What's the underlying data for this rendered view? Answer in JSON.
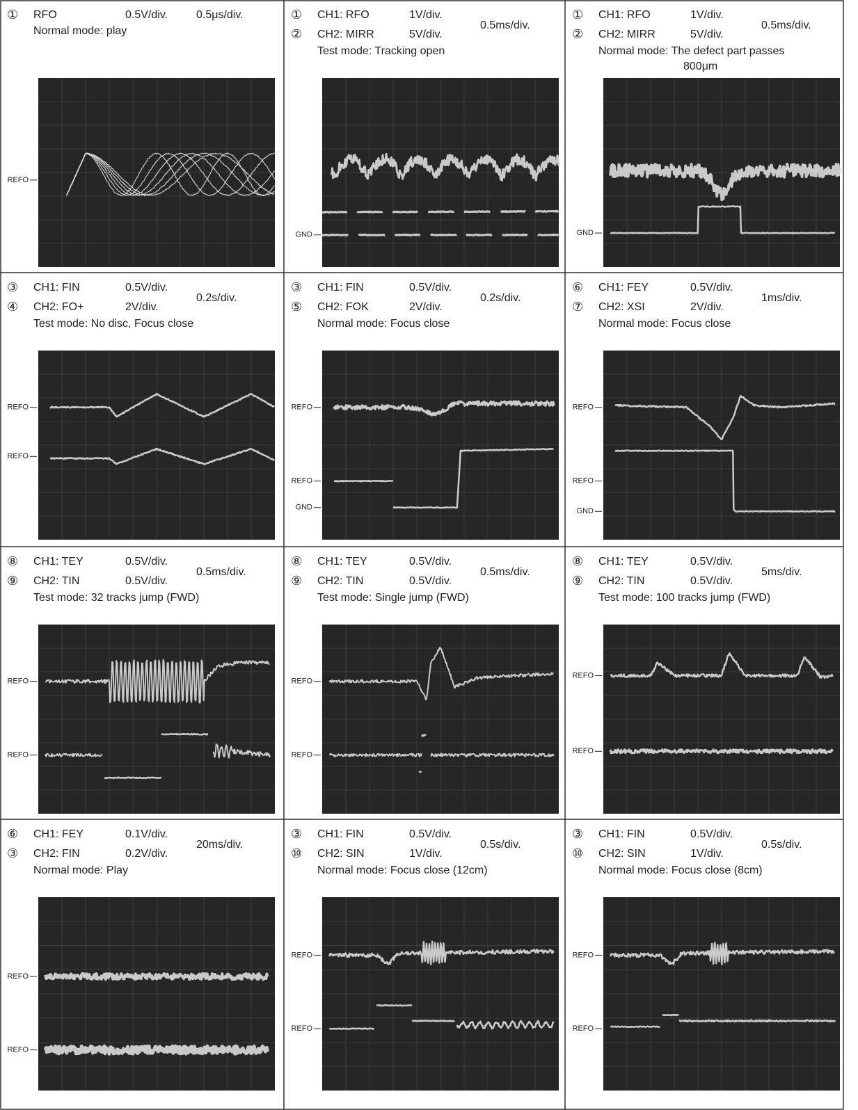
{
  "panels": [
    {
      "channels": [
        {
          "marker": "①",
          "name": "RFO",
          "volts": "0.5V/div."
        }
      ],
      "timebase": "0.5μs/div.",
      "mode": [
        "Normal mode: play"
      ],
      "refs": [
        "REFO"
      ]
    },
    {
      "channels": [
        {
          "marker": "①",
          "name": "CH1: RFO",
          "volts": "1V/div."
        },
        {
          "marker": "②",
          "name": "CH2: MIRR",
          "volts": "5V/div."
        }
      ],
      "timebase": "0.5ms/div.",
      "mode": [
        "Test mode: Tracking open"
      ],
      "refs": [
        "GND"
      ]
    },
    {
      "channels": [
        {
          "marker": "①",
          "name": "CH1: RFO",
          "volts": "1V/div."
        },
        {
          "marker": "②",
          "name": "CH2: MIRR",
          "volts": "5V/div."
        }
      ],
      "timebase": "0.5ms/div.",
      "mode": [
        "Normal mode: The defect part passes",
        "800μm"
      ],
      "refs": [
        "GND"
      ]
    },
    {
      "channels": [
        {
          "marker": "③",
          "name": "CH1: FIN",
          "volts": "0.5V/div."
        },
        {
          "marker": "④",
          "name": "CH2: FO+",
          "volts": "2V/div."
        }
      ],
      "timebase": "0.2s/div.",
      "mode": [
        "Test mode: No disc, Focus close"
      ],
      "refs": [
        "REFO",
        "REFO"
      ]
    },
    {
      "channels": [
        {
          "marker": "③",
          "name": "CH1: FIN",
          "volts": "0.5V/div."
        },
        {
          "marker": "⑤",
          "name": "CH2: FOK",
          "volts": "2V/div."
        }
      ],
      "timebase": "0.2s/div.",
      "mode": [
        "Normal mode: Focus close"
      ],
      "refs": [
        "REFO",
        "REFO",
        "GND"
      ]
    },
    {
      "channels": [
        {
          "marker": "⑥",
          "name": "CH1: FEY",
          "volts": "0.5V/div."
        },
        {
          "marker": "⑦",
          "name": "CH2: XSI",
          "volts": "2V/div."
        }
      ],
      "timebase": "1ms/div.",
      "mode": [
        "Normal mode: Focus close"
      ],
      "refs": [
        "REFO",
        "REFO",
        "GND"
      ]
    },
    {
      "channels": [
        {
          "marker": "⑧",
          "name": "CH1: TEY",
          "volts": "0.5V/div."
        },
        {
          "marker": "⑨",
          "name": "CH2: TIN",
          "volts": "0.5V/div."
        }
      ],
      "timebase": "0.5ms/div.",
      "mode": [
        "Test mode: 32 tracks jump (FWD)"
      ],
      "refs": [
        "REFO",
        "REFO"
      ]
    },
    {
      "channels": [
        {
          "marker": "⑧",
          "name": "CH1: TEY",
          "volts": "0.5V/div."
        },
        {
          "marker": "⑨",
          "name": "CH2: TIN",
          "volts": "0.5V/div."
        }
      ],
      "timebase": "0.5ms/div.",
      "mode": [
        "Test mode: Single jump (FWD)"
      ],
      "refs": [
        "REFO",
        "REFO"
      ]
    },
    {
      "channels": [
        {
          "marker": "⑧",
          "name": "CH1: TEY",
          "volts": "0.5V/div."
        },
        {
          "marker": "⑨",
          "name": "CH2: TIN",
          "volts": "0.5V/div."
        }
      ],
      "timebase": "5ms/div.",
      "mode": [
        "Test mode: 100 tracks jump (FWD)"
      ],
      "refs": [
        "REFO",
        "REFO"
      ]
    },
    {
      "channels": [
        {
          "marker": "⑥",
          "name": "CH1: FEY",
          "volts": "0.1V/div."
        },
        {
          "marker": "③",
          "name": "CH2: FIN",
          "volts": "0.2V/div."
        }
      ],
      "timebase": "20ms/div.",
      "mode": [
        "Normal mode: Play"
      ],
      "refs": [
        "REFO",
        "REFO"
      ]
    },
    {
      "channels": [
        {
          "marker": "③",
          "name": "CH1: FIN",
          "volts": "0.5V/div."
        },
        {
          "marker": "⑩",
          "name": "CH2: SIN",
          "volts": "1V/div."
        }
      ],
      "timebase": "0.5s/div.",
      "mode": [
        "Normal mode: Focus close (12cm)"
      ],
      "refs": [
        "REFO",
        "REFO"
      ]
    },
    {
      "channels": [
        {
          "marker": "③",
          "name": "CH1: FIN",
          "volts": "0.5V/div."
        },
        {
          "marker": "⑩",
          "name": "CH2: SIN",
          "volts": "1V/div."
        }
      ],
      "timebase": "0.5s/div.",
      "mode": [
        "Normal mode: Focus close (8cm)"
      ],
      "refs": [
        "REFO",
        "REFO"
      ]
    }
  ]
}
